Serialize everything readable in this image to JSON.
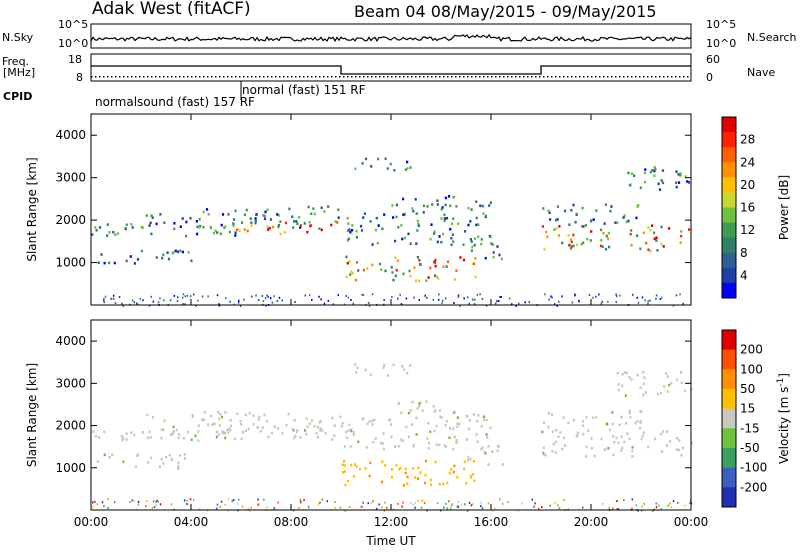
{
  "header": {
    "station": "Adak West (fitACF)",
    "beam_date": "Beam 04 08/May/2015 - 09/May/2015"
  },
  "top_panels": {
    "nsky_label": "N.Sky",
    "nsky_ticks": [
      "10^5",
      "10^0"
    ],
    "nsearch_label": "N.Search",
    "nsearch_ticks": [
      "10^5",
      "10^0"
    ],
    "freq_label": "Freq.",
    "freq_unit": "[MHz]",
    "freq_ticks": [
      "18",
      "8"
    ],
    "nave_label": "Nave",
    "nave_ticks": [
      "60",
      "0"
    ],
    "cpid_label": "CPID",
    "cpid_1": "normalsound (fast) 157 RF",
    "cpid_2": "normal (fast) 151 RF"
  },
  "chart_data": [
    {
      "type": "heatmap",
      "name": "power-panel",
      "ylabel": "Slant Range [km]",
      "xlabel": "",
      "xlim": [
        0,
        24
      ],
      "ylim": [
        0,
        4500
      ],
      "y_ticks": [
        "1000",
        "2000",
        "3000",
        "4000"
      ],
      "colorbar": {
        "label": "Power [dB]",
        "ticks": [
          "28",
          "24",
          "20",
          "16",
          "12",
          "8",
          "4"
        ],
        "colors": [
          "#0000ff",
          "#1f3fa8",
          "#2d5f90",
          "#2f7f6a",
          "#3f9d4f",
          "#70c040",
          "#c8d830",
          "#ffc000",
          "#ff9000",
          "#ff6000",
          "#ff2000",
          "#e00000"
        ]
      }
    },
    {
      "type": "heatmap",
      "name": "velocity-panel",
      "ylabel": "Slant Range [km]",
      "xlabel": "Time UT",
      "xlim": [
        0,
        24
      ],
      "ylim": [
        0,
        4500
      ],
      "x_ticks": [
        "00:00",
        "04:00",
        "08:00",
        "12:00",
        "16:00",
        "20:00",
        "00:00"
      ],
      "y_ticks": [
        "1000",
        "2000",
        "3000",
        "4000"
      ],
      "colorbar": {
        "label": "Velocity [m s",
        "unit_sup": "-1",
        "unit_close": "]",
        "ticks": [
          "200",
          "100",
          "50",
          "15",
          "-15",
          "-50",
          "-100",
          "-200"
        ],
        "colors": [
          "#2030b0",
          "#3a5fc0",
          "#3aa060",
          "#70c040",
          "#c8c8c0",
          "#ffc000",
          "#ff9000",
          "#ff5000",
          "#e00000"
        ]
      }
    }
  ]
}
